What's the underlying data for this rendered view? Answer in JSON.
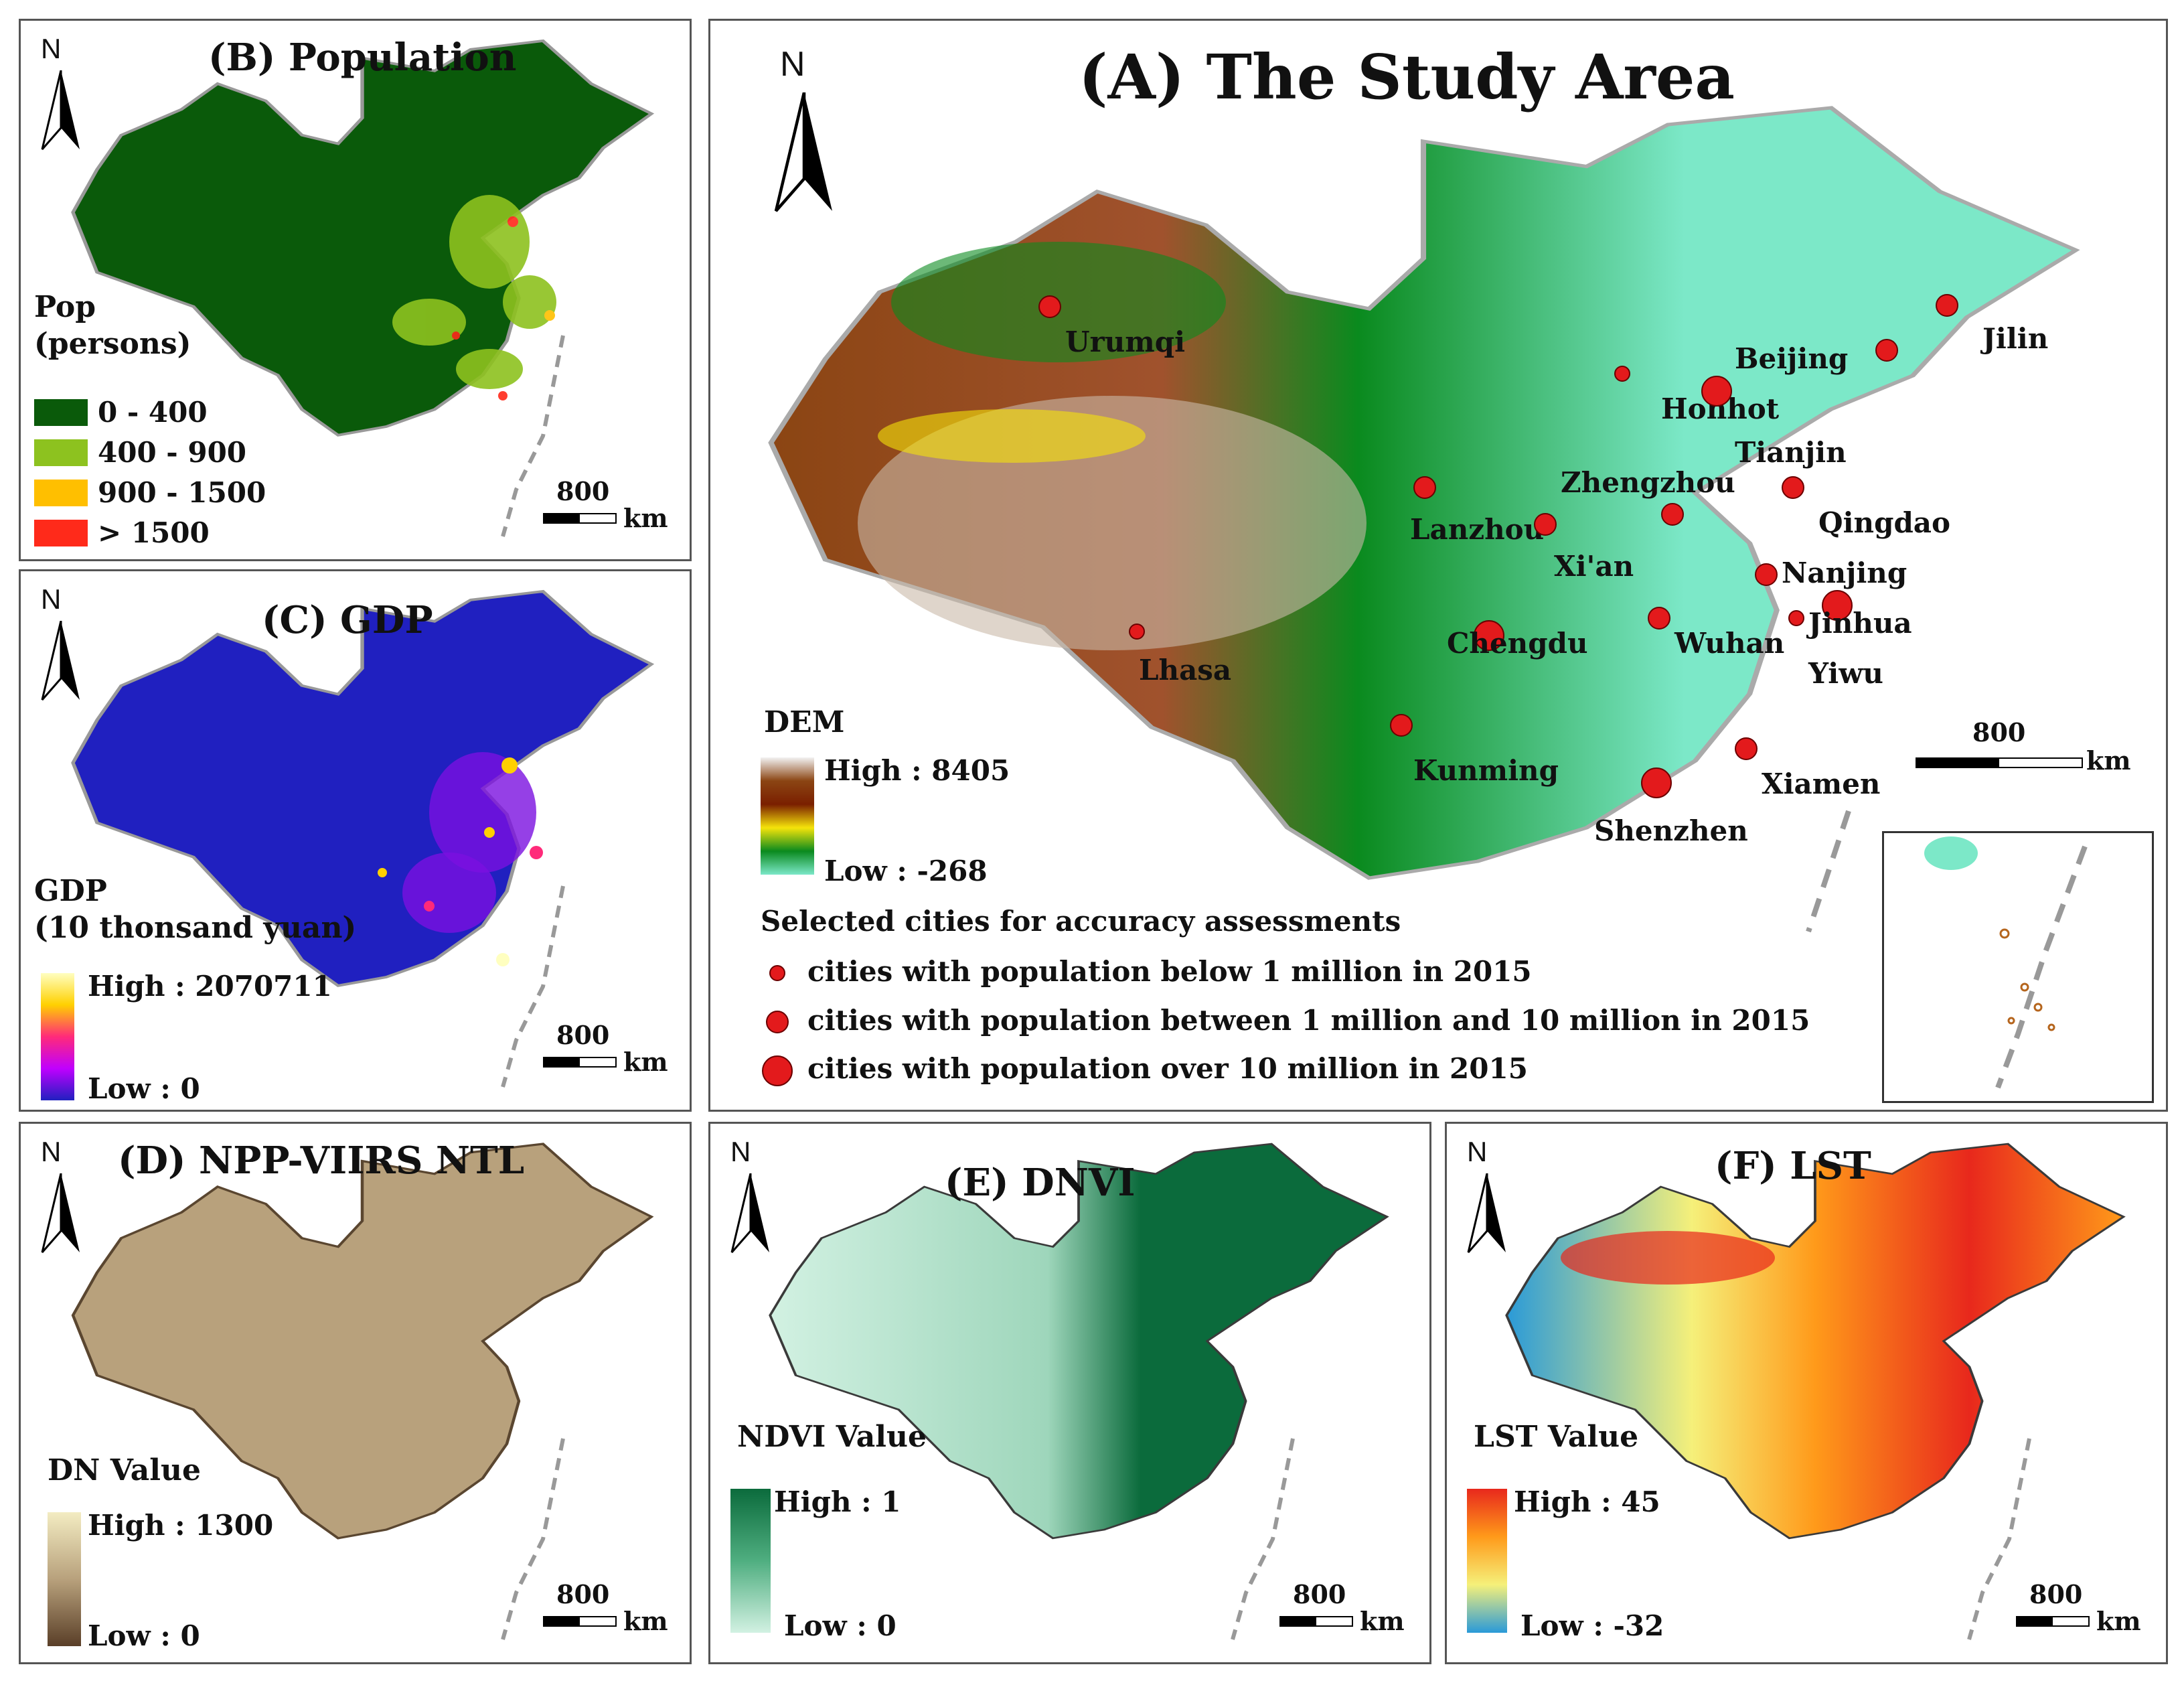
{
  "panels": {
    "A": {
      "title": "(A) The Study Area",
      "north": "N",
      "legend_title": "DEM",
      "high": "High : 8405",
      "low": "Low : -268",
      "scale_value": "800",
      "scale_unit": "km",
      "cities_heading": "Selected cities for accuracy assessments",
      "city_classes": [
        "cities with population below 1 million in 2015",
        "cities with population between 1 million and 10 million in 2015",
        "cities with population over 10 million in 2015"
      ],
      "cities": [
        "Urumqi",
        "Beijing",
        "Jilin",
        "Hohhot",
        "Tianjin",
        "Zhengzhou",
        "Lanzhou",
        "Qingdao",
        "Xi'an",
        "Nanjing",
        "Jinhua",
        "Chengdu",
        "Wuhan",
        "Yiwu",
        "Lhasa",
        "Kunming",
        "Xiamen",
        "Shenzhen"
      ],
      "colors": [
        "#f2f2f2",
        "#8b4513",
        "#7a1f00",
        "#f5e30a",
        "#0a8a1e",
        "#7ce8c8"
      ]
    },
    "B": {
      "title": "(B) Population",
      "north": "N",
      "legend_title_1": "Pop",
      "legend_title_2": "(persons)",
      "classes": [
        {
          "label": "0 - 400",
          "color": "#0a5a0a"
        },
        {
          "label": "400 - 900",
          "color": "#8dc21f"
        },
        {
          "label": "900 - 1500",
          "color": "#ffbf00"
        },
        {
          "label": "> 1500",
          "color": "#ff2a1a"
        }
      ],
      "scale_value": "800",
      "scale_unit": "km"
    },
    "C": {
      "title": "(C) GDP",
      "north": "N",
      "legend_title_1": "GDP",
      "legend_title_2": "(10 thonsand yuan)",
      "high": "High : 2070711",
      "low": "Low : 0",
      "scale_value": "800",
      "scale_unit": "km",
      "colors": [
        "#ffffc0",
        "#ffd000",
        "#ff2a7a",
        "#c000ff",
        "#2020c0"
      ]
    },
    "D": {
      "title": "(D) NPP-VIIRS NTL",
      "north": "N",
      "legend_title": "DN Value",
      "high": "High : 1300",
      "low": "Low : 0",
      "scale_value": "800",
      "scale_unit": "km",
      "colors": [
        "#f3ecc2",
        "#b8a17c",
        "#5a3f28"
      ]
    },
    "E": {
      "title": "(E) DNVI",
      "north": "N",
      "legend_title": "NDVI Value",
      "high": "High : 1",
      "low": "Low : 0",
      "scale_value": "800",
      "scale_unit": "km",
      "colors": [
        "#0b6b3c",
        "#4fae80",
        "#d2f1e2"
      ]
    },
    "F": {
      "title": "(F) LST",
      "north": "N",
      "legend_title": "LST Value",
      "high": "High : 45",
      "low": "Low : -32",
      "scale_value": "800",
      "scale_unit": "km",
      "colors": [
        "#e8281c",
        "#ff9a1a",
        "#f5f07a",
        "#2a9ad8"
      ]
    }
  }
}
